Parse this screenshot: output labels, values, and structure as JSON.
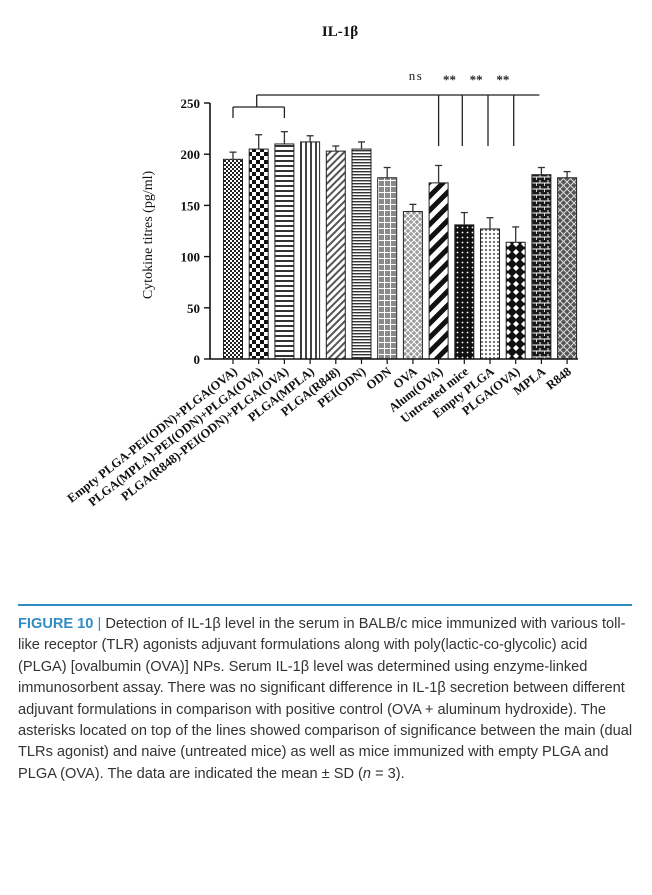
{
  "chart_data": {
    "type": "bar",
    "title": "IL-1β",
    "xlabel": "",
    "ylabel": "Cytokine titres (pg/ml)",
    "ylim": [
      0,
      250
    ],
    "yticks": [
      0,
      50,
      100,
      150,
      200,
      250
    ],
    "grid": false,
    "categories": [
      "Empty PLGA-PEI(ODN)+PLGA(OVA)",
      "PLGA(MPLA)-PEI(ODN)+PLGA(OVA)",
      "PLGA(R848)-PEI(ODN)+PLGA(OVA)",
      "PLGA(MPLA)",
      "PLGA(R848)",
      "PEI(ODN)",
      "ODN",
      "OVA",
      "Alum(OVA)",
      "Untreated mice",
      "Empty PLGA",
      "PLGA(OVA)",
      "MPLA",
      "R848"
    ],
    "values": [
      195,
      205,
      210,
      212,
      203,
      205,
      177,
      144,
      172,
      131,
      127,
      114,
      180,
      177
    ],
    "errors": [
      7,
      14,
      12,
      6,
      5,
      7,
      10,
      7,
      17,
      12,
      11,
      15,
      7,
      6
    ],
    "patterns": [
      "dense-check",
      "checker",
      "hstripes",
      "vstripes",
      "diag-fine",
      "hstripes-fine",
      "grid",
      "crosshatch",
      "diag-bold",
      "dots",
      "dots-light",
      "diamonds",
      "bricks",
      "crosshatch-dark"
    ],
    "annotations": {
      "ns_label": "ns",
      "sig_labels": [
        "**",
        "**",
        "**"
      ]
    }
  },
  "caption": {
    "figure_label": "FIGURE 10",
    "separator": " | ",
    "text": "Detection of IL-1β level in the serum in BALB/c mice immunized with various toll-like receptor (TLR) agonists adjuvant formulations along with poly(lactic-co-glycolic) acid (PLGA) [ovalbumin (OVA)] NPs. Serum IL-1β level was determined using enzyme-linked immunosorbent assay. There was no significant difference in IL-1β secretion between different adjuvant formulations in comparison with positive control (OVA + aluminum hydroxide). The asterisks located on top of the lines showed comparison of significance between the main (dual TLRs agonist) and naive (untreated mice) as well as mice immunized with empty PLGA and PLGA (OVA). The data are indicated the mean ± SD (",
    "n_symbol": "n",
    "text_end": " = 3)."
  }
}
